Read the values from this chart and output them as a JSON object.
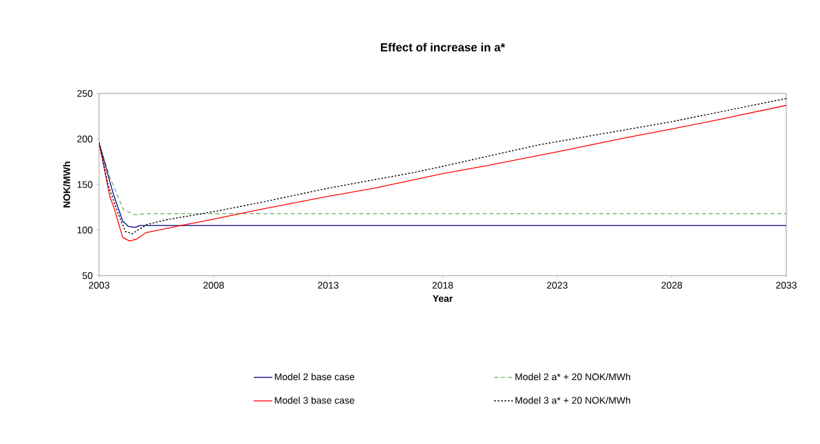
{
  "chart_data": {
    "type": "line",
    "title": "Effect of increase in a*",
    "xlabel": "Year",
    "ylabel": "NOK/MWh",
    "xlim": [
      2003,
      2033
    ],
    "xticks": [
      2003,
      2008,
      2013,
      2018,
      2023,
      2028,
      2033
    ],
    "ylim": [
      50,
      250
    ],
    "yticks": [
      50,
      100,
      150,
      200,
      250
    ],
    "grid": false,
    "legend": "bottom",
    "marker": "none",
    "series": [
      {
        "name": "Model 2 base case",
        "color": "#000080",
        "line_style": "solid",
        "x": [
          2003,
          2003.63,
          2004.03,
          2004.28,
          2004.58,
          2004.78,
          2033
        ],
        "values": [
          196,
          139,
          110,
          104,
          103,
          105,
          105
        ]
      },
      {
        "name": "Model 2 a* + 20 NOK/MWh",
        "color": "#008000",
        "line_style": "dashed",
        "x": [
          2003,
          2003.46,
          2004.06,
          2004.58,
          2005,
          2033
        ],
        "values": [
          196,
          159,
          122.5,
          116.7,
          118,
          118
        ]
      },
      {
        "name": "Model 3 base case",
        "color": "#ff0000",
        "line_style": "solid",
        "x": [
          2003,
          2003.48,
          2003.66,
          2004.03,
          2004.33,
          2004.63,
          2005.03,
          2006.38,
          2007.88,
          2010.09,
          2013,
          2015,
          2016.7,
          2018,
          2020,
          2023,
          2026,
          2028,
          2030,
          2033
        ],
        "values": [
          196,
          136,
          124,
          92,
          88,
          90,
          97,
          104,
          111.5,
          123,
          137,
          146,
          155,
          162,
          171,
          186,
          201.5,
          211,
          221,
          237
        ]
      },
      {
        "name": "Model 3 a* + 20 NOK/MWh",
        "color": "#000000",
        "line_style": "dotted",
        "x": [
          2003,
          2003.4,
          2003.85,
          2004.15,
          2004.45,
          2005.08,
          2005.88,
          2007.38,
          2008.18,
          2010.09,
          2013,
          2016.7,
          2018,
          2022.2,
          2028,
          2033
        ],
        "values": [
          196,
          149,
          117,
          98.5,
          96,
          106,
          111,
          117.5,
          121,
          130.5,
          146,
          163,
          170,
          193.6,
          219,
          244.5
        ]
      }
    ]
  }
}
